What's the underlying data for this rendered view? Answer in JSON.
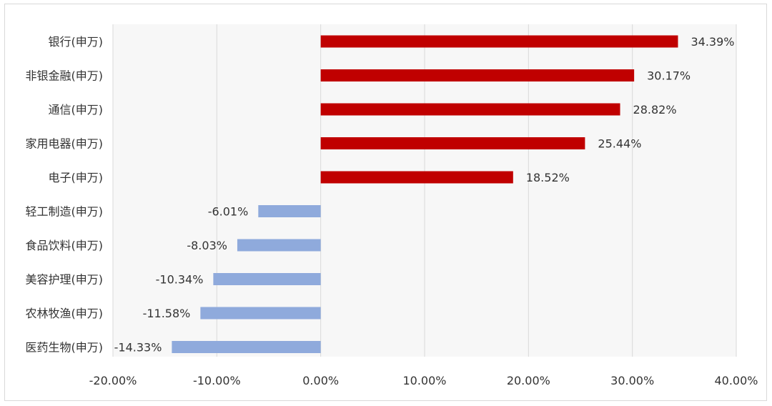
{
  "chart_data": {
    "type": "bar",
    "orientation": "horizontal",
    "categories": [
      "银行(申万)",
      "非银金融(申万)",
      "通信(申万)",
      "家用电器(申万)",
      "电子(申万)",
      "轻工制造(申万)",
      "食品饮料(申万)",
      "美容护理(申万)",
      "农林牧渔(申万)",
      "医药生物(申万)"
    ],
    "values": [
      34.39,
      30.17,
      28.82,
      25.44,
      18.52,
      -6.01,
      -8.03,
      -10.34,
      -11.58,
      -14.33
    ],
    "value_labels": [
      "34.39%",
      "30.17%",
      "28.82%",
      "25.44%",
      "18.52%",
      "-6.01%",
      "-8.03%",
      "-10.34%",
      "-11.58%",
      "-14.33%"
    ],
    "xlim": [
      -20,
      40
    ],
    "xticks": [
      -20,
      -10,
      0,
      10,
      20,
      30,
      40
    ],
    "xtick_labels": [
      "-20.00%",
      "-10.00%",
      "0.00%",
      "10.00%",
      "20.00%",
      "30.00%",
      "40.00%"
    ],
    "grid": "vertical",
    "legend": "none",
    "colors": {
      "positive": "#c00000",
      "negative": "#8faadc",
      "grid": "#d9d9d9",
      "plot_bg": "#f7f7f7"
    }
  }
}
